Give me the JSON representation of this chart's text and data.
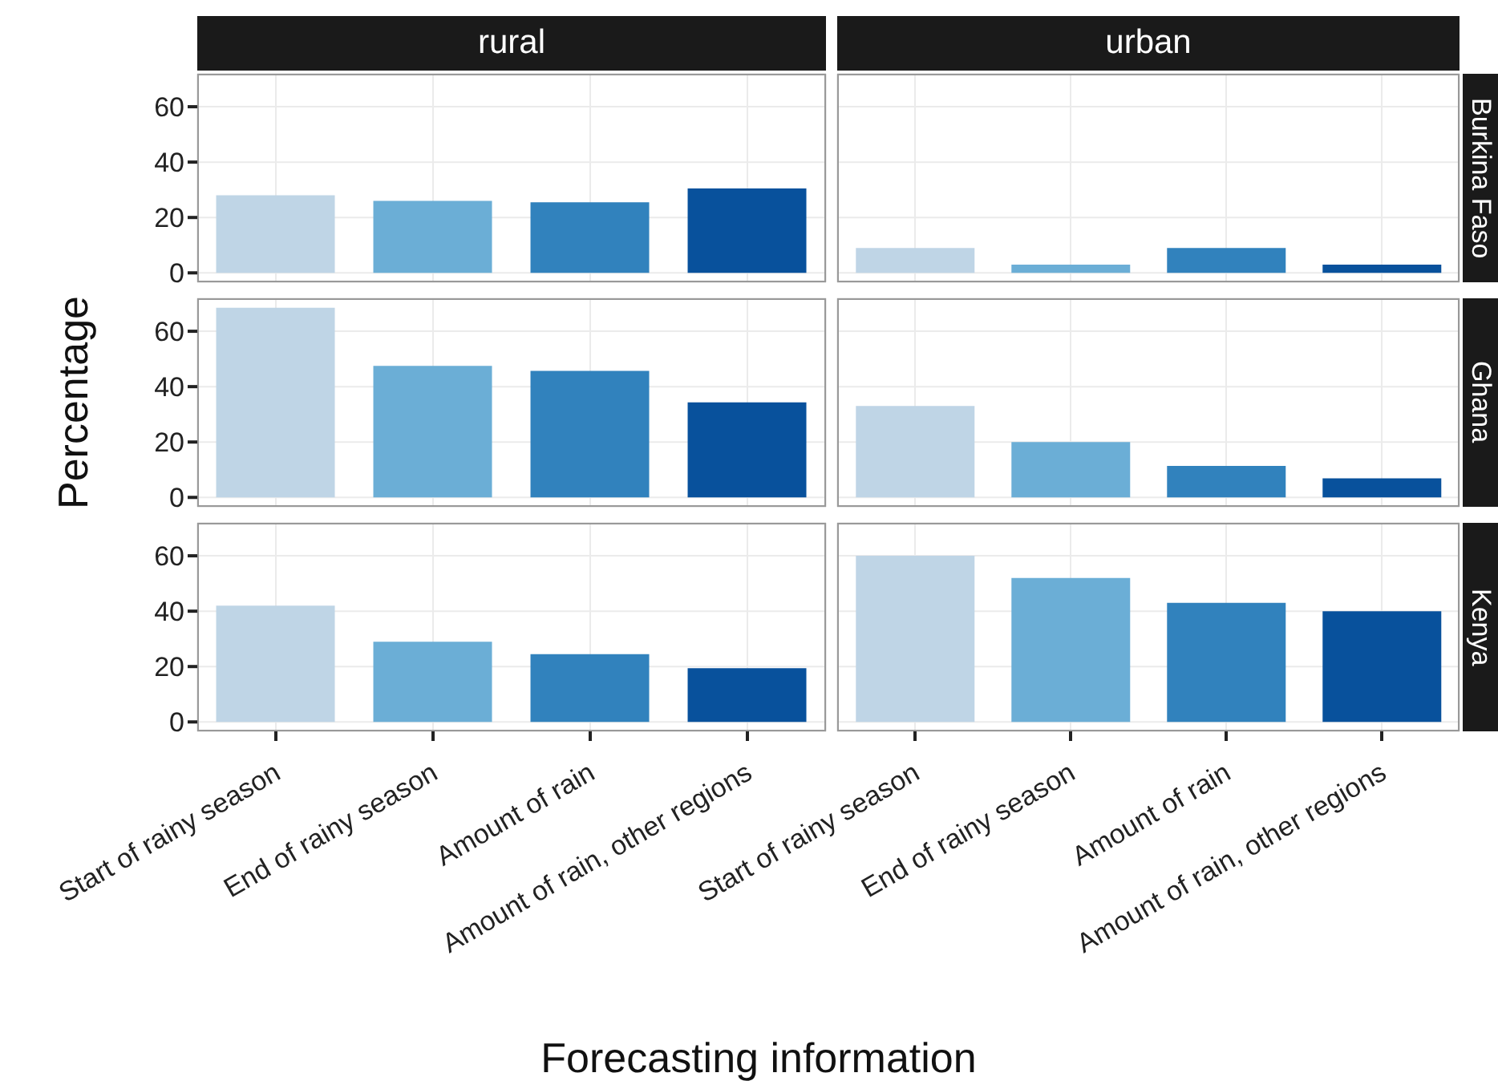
{
  "chart_data": [
    {
      "type": "bar",
      "annotations": [
        "rural",
        "urban"
      ],
      "y2label": "Burkina Faso",
      "categories": [
        null,
        null,
        null,
        null,
        null,
        null,
        null,
        null
      ],
      "values": [
        28,
        26,
        25.5,
        30.5,
        9,
        3,
        9,
        3
      ],
      "colors": [
        "#bfd5e6",
        "#6baed6",
        "#3182bd",
        "#08519c",
        "#bfd5e6",
        "#6baed6",
        "#3182bd",
        "#08519c"
      ],
      "ylim": [
        -3.4,
        71.9
      ],
      "yticks": [
        0,
        20,
        40,
        60
      ],
      "grid": true,
      "tick_labels": "y"
    },
    {
      "type": "bar",
      "ylabel": "Percentage",
      "y2label": "Ghana",
      "categories": [
        null,
        null,
        null,
        null,
        null,
        null,
        null,
        null
      ],
      "values": [
        68.5,
        47.5,
        45.7,
        34.3,
        33,
        20,
        11.4,
        6.9
      ],
      "colors": [
        "#bfd5e6",
        "#6baed6",
        "#3182bd",
        "#08519c",
        "#bfd5e6",
        "#6baed6",
        "#3182bd",
        "#08519c"
      ],
      "ylim": [
        -3.4,
        71.9
      ],
      "yticks": [
        0,
        20,
        40,
        60
      ],
      "grid": true,
      "tick_labels": "y"
    },
    {
      "type": "bar",
      "xlabel": "Forecasting information",
      "y2label": "Kenya",
      "categories": [
        "Start of rainy season",
        "End of rainy season",
        "Amount of rain",
        "Amount of rain, other regions",
        "Start of rainy season",
        "End of rainy season",
        "Amount of rain",
        "Amount of rain, other regions"
      ],
      "values": [
        42,
        29,
        24.5,
        19.4,
        60,
        52,
        43,
        40
      ],
      "colors": [
        "#bfd5e6",
        "#6baed6",
        "#3182bd",
        "#08519c",
        "#bfd5e6",
        "#6baed6",
        "#3182bd",
        "#08519c"
      ],
      "ylim": [
        -3.4,
        71.9
      ],
      "yticks": [
        0,
        20,
        40,
        60
      ],
      "grid": true
    }
  ]
}
